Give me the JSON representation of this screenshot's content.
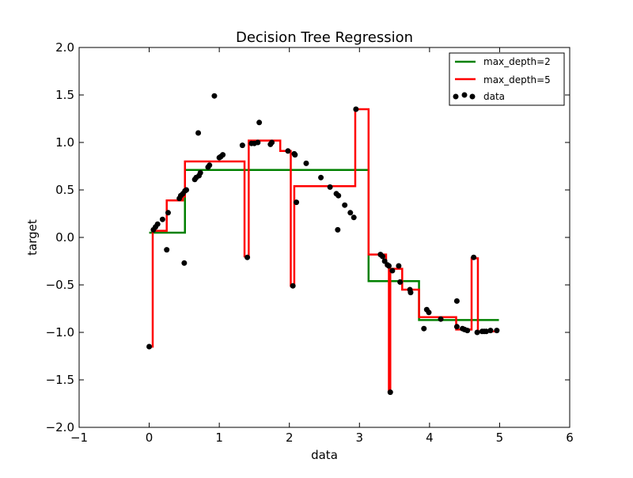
{
  "chart_data": {
    "type": "scatter",
    "title": "Decision Tree Regression",
    "xlabel": "data",
    "ylabel": "target",
    "xlim": [
      -1,
      6
    ],
    "ylim": [
      -2,
      2
    ],
    "xticks": [
      -1,
      0,
      1,
      2,
      3,
      4,
      5,
      6
    ],
    "yticks": [
      -2.0,
      -1.5,
      -1.0,
      -0.5,
      0.0,
      0.5,
      1.0,
      1.5,
      2.0
    ],
    "xtick_labels": [
      "−1",
      "0",
      "1",
      "2",
      "3",
      "4",
      "5",
      "6"
    ],
    "ytick_labels": [
      "−2.0",
      "−1.5",
      "−1.0",
      "−0.5",
      "0.0",
      "0.5",
      "1.0",
      "1.5",
      "2.0"
    ],
    "grid": false,
    "legend_position": "top-right",
    "series": [
      {
        "name": "max_depth=2",
        "kind": "step-line",
        "color": "#008000",
        "x": [
          0.0,
          0.51,
          0.51,
          3.13,
          3.13,
          3.85,
          3.85,
          4.99
        ],
        "y": [
          0.05,
          0.05,
          0.71,
          0.71,
          -0.46,
          -0.46,
          -0.87,
          -0.87
        ]
      },
      {
        "name": "max_depth=5",
        "kind": "step-line",
        "color": "#ff0000",
        "x": [
          0.0,
          0.05,
          0.05,
          0.25,
          0.25,
          0.48,
          0.48,
          0.51,
          0.51,
          1.36,
          1.36,
          1.42,
          1.42,
          1.87,
          1.87,
          2.02,
          2.02,
          2.07,
          2.07,
          2.94,
          2.94,
          3.13,
          3.13,
          3.38,
          3.38,
          3.42,
          3.42,
          3.44,
          3.44,
          3.61,
          3.61,
          3.85,
          3.85,
          4.38,
          4.38,
          4.6,
          4.6,
          4.69,
          4.69,
          4.99
        ],
        "y": [
          -1.15,
          -1.15,
          0.07,
          0.07,
          0.39,
          0.39,
          0.43,
          0.43,
          0.8,
          0.8,
          -0.2,
          -0.2,
          1.02,
          1.02,
          0.91,
          0.91,
          -0.51,
          -0.51,
          0.54,
          0.54,
          1.35,
          1.35,
          -0.18,
          -0.18,
          -0.3,
          -0.3,
          -1.63,
          -1.63,
          -0.33,
          -0.33,
          -0.55,
          -0.55,
          -0.84,
          -0.84,
          -0.97,
          -0.97,
          -0.22,
          -0.22,
          -0.99,
          -0.99
        ]
      },
      {
        "name": "data",
        "kind": "scatter",
        "color": "#000000",
        "x": [
          0.0,
          0.06,
          0.09,
          0.12,
          0.19,
          0.25,
          0.27,
          0.43,
          0.45,
          0.48,
          0.5,
          0.51,
          0.53,
          0.65,
          0.67,
          0.7,
          0.71,
          0.73,
          0.84,
          0.86,
          0.93,
          1.0,
          1.02,
          1.05,
          1.33,
          1.4,
          1.46,
          1.5,
          1.55,
          1.57,
          1.73,
          1.75,
          1.98,
          2.05,
          2.07,
          2.08,
          2.1,
          2.24,
          2.45,
          2.58,
          2.67,
          2.7,
          2.69,
          2.79,
          2.87,
          2.92,
          2.95,
          3.3,
          3.33,
          3.36,
          3.4,
          3.42,
          3.44,
          3.47,
          3.56,
          3.58,
          3.72,
          3.73,
          3.92,
          3.96,
          3.99,
          4.16,
          4.39,
          4.39,
          4.47,
          4.5,
          4.54,
          4.63,
          4.68,
          4.75,
          4.78,
          4.81,
          4.87,
          4.96
        ],
        "y": [
          -1.15,
          0.08,
          0.11,
          0.14,
          0.19,
          -0.13,
          0.26,
          0.41,
          0.44,
          0.46,
          -0.27,
          0.49,
          0.5,
          0.61,
          0.63,
          1.1,
          0.65,
          0.68,
          0.74,
          0.76,
          1.49,
          0.84,
          0.85,
          0.87,
          0.97,
          -0.21,
          0.99,
          0.99,
          1.0,
          1.21,
          0.98,
          1.0,
          0.91,
          -0.51,
          0.88,
          0.87,
          0.37,
          0.78,
          0.63,
          0.53,
          0.46,
          0.44,
          0.08,
          0.34,
          0.26,
          0.21,
          1.35,
          -0.18,
          -0.2,
          -0.25,
          -0.29,
          -0.3,
          -1.63,
          -0.35,
          -0.3,
          -0.47,
          -0.55,
          -0.58,
          -0.96,
          -0.76,
          -0.79,
          -0.86,
          -0.67,
          -0.94,
          -0.96,
          -0.97,
          -0.98,
          -0.21,
          -1.0,
          -0.99,
          -0.99,
          -0.99,
          -0.98,
          -0.98
        ]
      }
    ]
  }
}
